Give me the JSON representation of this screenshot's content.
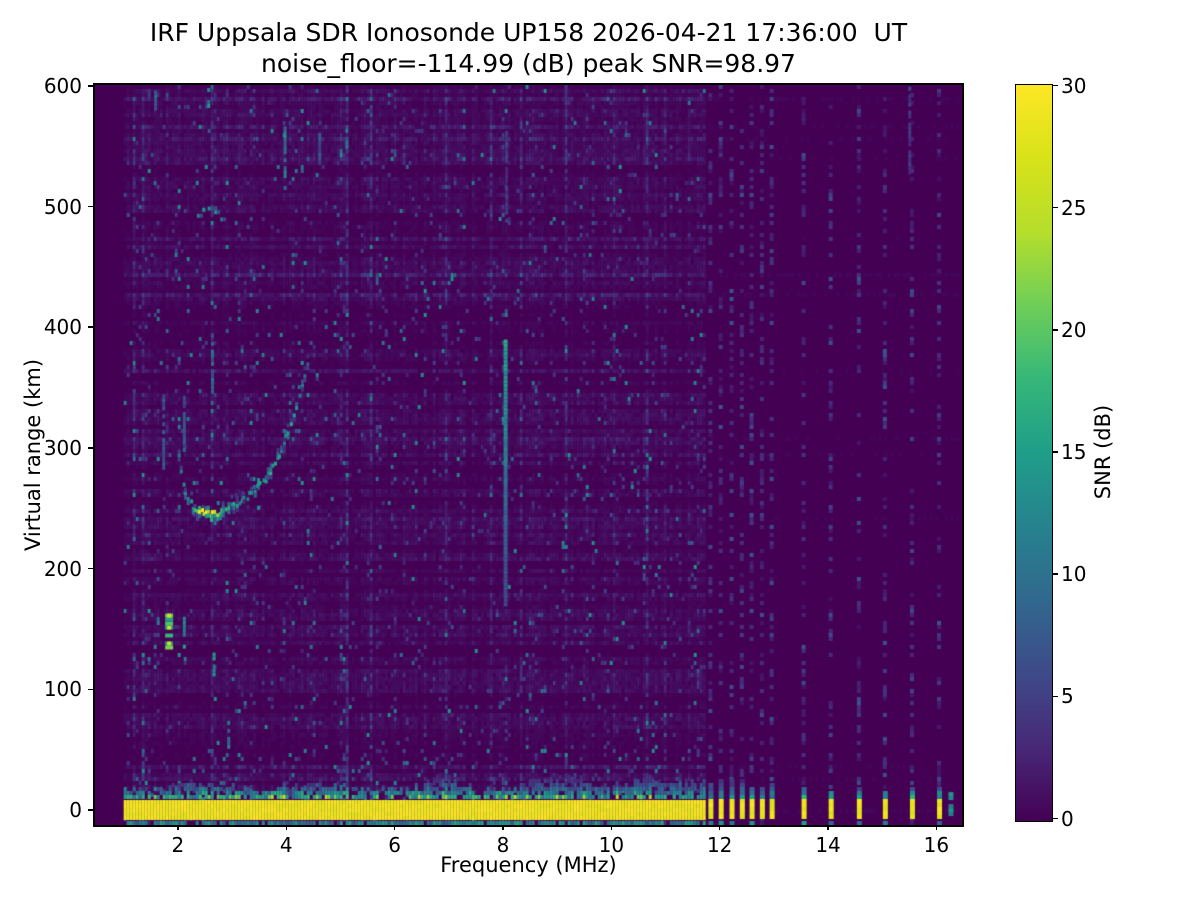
{
  "chart_data": {
    "type": "heatmap",
    "title": "IRF Uppsala SDR Ionosonde UP158 2026-04-21 17:36:00  UT",
    "subtitle": "noise_floor=-114.99 (dB) peak SNR=98.97",
    "station": "UP158",
    "timestamp_ut": "2026-04-21 17:36:00",
    "noise_floor_db": -114.99,
    "peak_snr_db": 98.97,
    "xlabel": "Frequency (MHz)",
    "ylabel": "Virtual range (km)",
    "x_ticks": [
      2,
      4,
      6,
      8,
      10,
      12,
      14,
      16
    ],
    "y_ticks": [
      0,
      100,
      200,
      300,
      400,
      500,
      600
    ],
    "xlim_mhz": [
      0.47,
      16.49
    ],
    "ylim_km": [
      -12.4,
      600
    ],
    "background_color": "#440154",
    "colorbar": {
      "label": "SNR (dB)",
      "ticks": [
        0,
        5,
        10,
        15,
        20,
        25,
        30
      ],
      "vmin": 0,
      "vmax": 30,
      "colormap": "viridis",
      "stops": [
        "#440154",
        "#482878",
        "#3e4a89",
        "#31688e",
        "#26828e",
        "#1f9e89",
        "#35b779",
        "#6ece58",
        "#b5de2b",
        "#d8e219",
        "#fde725"
      ]
    },
    "sweep": {
      "continuous_mhz": [
        1.0,
        11.72
      ],
      "discrete_mhz": [
        11.81,
        12.0,
        12.2,
        12.39,
        12.57,
        12.76,
        12.94,
        13.53,
        14.03,
        14.55,
        15.03,
        15.53,
        16.03
      ]
    },
    "features": {
      "ground_band": {
        "label": "ground / direct signal band",
        "range_km": [
          -9,
          8
        ],
        "snr_db": 30,
        "fringe_bumps": [
          {
            "f": 2.3,
            "h": 6
          },
          {
            "f": 4.55,
            "h": 7
          },
          {
            "f": 6.87,
            "h": 10
          },
          {
            "f": 8.8,
            "h": 8
          },
          {
            "f": 9.35,
            "h": 9
          },
          {
            "f": 10.6,
            "h": 10
          },
          {
            "f": 11.4,
            "h": 8
          }
        ]
      },
      "f_trace": {
        "label": "F-layer echo trace",
        "points": [
          [
            1.98,
            296,
            10
          ],
          [
            2.08,
            272,
            12
          ],
          [
            2.18,
            258,
            14
          ],
          [
            2.3,
            251,
            17
          ],
          [
            2.42,
            248,
            26
          ],
          [
            2.54,
            247,
            29
          ],
          [
            2.66,
            248,
            24
          ],
          [
            2.78,
            249,
            18
          ],
          [
            2.92,
            252,
            16
          ],
          [
            3.06,
            256,
            14
          ],
          [
            3.2,
            260,
            13
          ],
          [
            3.35,
            265,
            14
          ],
          [
            3.5,
            271,
            13
          ],
          [
            3.64,
            279,
            15
          ],
          [
            3.78,
            289,
            14
          ],
          [
            3.9,
            301,
            13
          ],
          [
            4.02,
            314,
            15
          ],
          [
            4.12,
            328,
            13
          ],
          [
            4.22,
            344,
            12
          ],
          [
            4.32,
            361,
            11
          ],
          [
            4.42,
            379,
            9
          ]
        ]
      },
      "second_hop": {
        "label": "second-hop echo",
        "points": [
          [
            2.35,
            494,
            12
          ],
          [
            2.45,
            499,
            13
          ],
          [
            2.55,
            500,
            13
          ],
          [
            2.67,
            497,
            12
          ],
          [
            2.78,
            491,
            11
          ]
        ]
      },
      "interference_line": {
        "label": "interference line at 8 MHz",
        "f": 8.03,
        "r": [
          172,
          392
        ],
        "snr_bottom": 6,
        "snr_top": 15
      },
      "streaks": [
        {
          "f": 1.72,
          "r": [
            285,
            345
          ],
          "snr": 9
        },
        {
          "f": 2.1,
          "r": [
            300,
            345
          ],
          "snr": 8
        },
        {
          "f": 2.62,
          "r": [
            345,
            400
          ],
          "snr": 9
        },
        {
          "f": 3.47,
          "r": [
            252,
            280
          ],
          "snr": 13
        },
        {
          "f": 3.96,
          "r": [
            517,
            567
          ],
          "snr": 12
        },
        {
          "f": 5.1,
          "r": [
            538,
            565
          ],
          "snr": 10
        },
        {
          "f": 4.6,
          "r": [
            538,
            562
          ],
          "snr": 8
        },
        {
          "f": 1.82,
          "r": [
            133,
            166
          ],
          "snr": 20,
          "w": 8
        },
        {
          "f": 2.1,
          "r": [
            137,
            163
          ],
          "snr": 13
        },
        {
          "f": 2.65,
          "r": [
            114,
            132
          ],
          "snr": 13
        },
        {
          "f": 2.92,
          "r": [
            54,
            80
          ],
          "snr": 12
        },
        {
          "f": 1.57,
          "r": [
            583,
            600
          ],
          "snr": 12
        },
        {
          "f": 2.55,
          "r": [
            585,
            600
          ],
          "snr": 13
        },
        {
          "f": 8.05,
          "r": [
            490,
            565
          ],
          "snr": 5
        },
        {
          "f": 15.49,
          "r": [
            530,
            600
          ],
          "snr": 5.5
        },
        {
          "f": 16.25,
          "r": [
            -5,
            18
          ],
          "snr": 14,
          "w": 5
        }
      ]
    }
  }
}
